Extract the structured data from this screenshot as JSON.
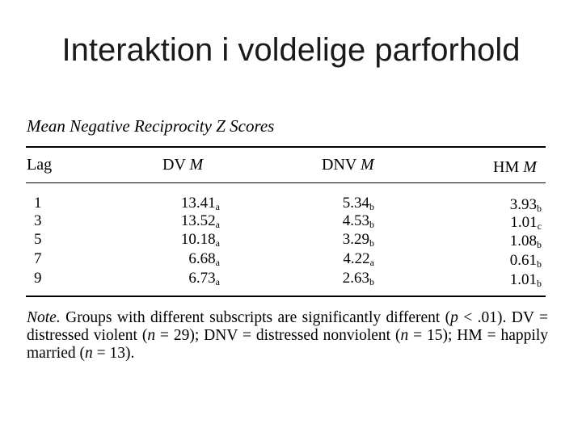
{
  "slide": {
    "title": "Interaktion i voldelige parforhold"
  },
  "table": {
    "caption": "Mean Negative Reciprocity Z Scores",
    "headers": {
      "lag": "Lag",
      "dv": {
        "label": "DV",
        "stat": "M"
      },
      "dnv": {
        "label": "DNV",
        "stat": "M"
      },
      "hm": {
        "label": "HM",
        "stat": "M"
      }
    },
    "rows": [
      {
        "lag": "1",
        "dv": "13.41",
        "dv_sub": "a",
        "dnv": "5.34",
        "dnv_sub": "b",
        "hm": "3.93",
        "hm_sub": "b"
      },
      {
        "lag": "3",
        "dv": "13.52",
        "dv_sub": "a",
        "dnv": "4.53",
        "dnv_sub": "b",
        "hm": "1.01",
        "hm_sub": "c"
      },
      {
        "lag": "5",
        "dv": "10.18",
        "dv_sub": "a",
        "dnv": "3.29",
        "dnv_sub": "b",
        "hm": "1.08",
        "hm_sub": "b"
      },
      {
        "lag": "7",
        "dv": "6.68",
        "dv_sub": "a",
        "dnv": "4.22",
        "dnv_sub": "a",
        "hm": "0.61",
        "hm_sub": "b"
      },
      {
        "lag": "9",
        "dv": "6.73",
        "dv_sub": "a",
        "dnv": "2.63",
        "dnv_sub": "b",
        "hm": "1.01",
        "hm_sub": "b"
      }
    ],
    "note": {
      "label": "Note.",
      "text_1": "Groups with different subscripts are significantly different (",
      "p_symbol": "p",
      "text_2": " < .01). DV = distressed violent (",
      "n1_symbol": "n",
      "text_3": " = 29); DNV = distressed nonviolent (",
      "n2_symbol": "n",
      "text_4": " = 15); HM = happily married (",
      "n3_symbol": "n",
      "text_5": " = 13)."
    }
  }
}
